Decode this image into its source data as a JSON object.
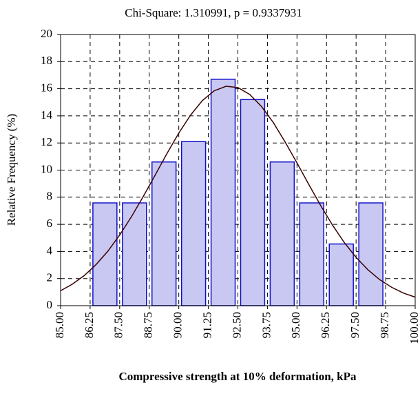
{
  "chart_data": {
    "type": "histogram",
    "title": "Chi-Square: 1.310991,  p = 0.9337931",
    "xlabel": "Compressive strength at 10% deformation, kPa",
    "ylabel": "Relative Frequency (%)",
    "bins": [
      86.25,
      87.5,
      88.75,
      90,
      91.25,
      92.5,
      93.75,
      95,
      96.25,
      97.5,
      98.75
    ],
    "values": [
      7.58,
      7.58,
      10.6,
      12.1,
      16.7,
      15.2,
      10.6,
      7.58,
      4.55,
      7.58
    ],
    "color": "#c8c8f2",
    "edge_color": "#1010c8",
    "fit_curve": {
      "color": "#3a0000",
      "x": [
        85,
        85.5,
        86,
        86.5,
        87,
        87.5,
        88,
        88.5,
        89,
        89.5,
        90,
        90.5,
        91,
        91.5,
        92,
        92.5,
        93,
        93.5,
        94,
        94.5,
        95,
        95.5,
        96,
        96.5,
        97,
        97.5,
        98,
        98.5,
        99,
        99.5,
        100
      ],
      "values": [
        1.1,
        1.59,
        2.22,
        3.03,
        4.02,
        5.21,
        6.57,
        8.06,
        9.63,
        11.22,
        12.73,
        14.06,
        15.13,
        15.85,
        16.18,
        16.09,
        15.58,
        14.69,
        13.5,
        12.07,
        10.53,
        8.94,
        7.39,
        5.95,
        4.66,
        3.56,
        2.65,
        1.92,
        1.36,
        0.93,
        0.63
      ]
    },
    "xlim": [
      85,
      100
    ],
    "ylim": [
      0,
      20
    ],
    "xticks": [
      {
        "value": 85,
        "label": "85.00"
      },
      {
        "value": 86.25,
        "label": "86.25"
      },
      {
        "value": 87.5,
        "label": "87.50"
      },
      {
        "value": 88.75,
        "label": "88.75"
      },
      {
        "value": 90,
        "label": "90.00"
      },
      {
        "value": 91.25,
        "label": "91.25"
      },
      {
        "value": 92.5,
        "label": "92.50"
      },
      {
        "value": 93.75,
        "label": "93.75"
      },
      {
        "value": 95,
        "label": "95.00"
      },
      {
        "value": 96.25,
        "label": "96.25"
      },
      {
        "value": 97.5,
        "label": "97.50"
      },
      {
        "value": 98.75,
        "label": "98.75"
      },
      {
        "value": 100,
        "label": "100.00"
      }
    ],
    "yticks": [
      0,
      2,
      4,
      6,
      8,
      10,
      12,
      14,
      16,
      18,
      20
    ],
    "grid": true
  }
}
